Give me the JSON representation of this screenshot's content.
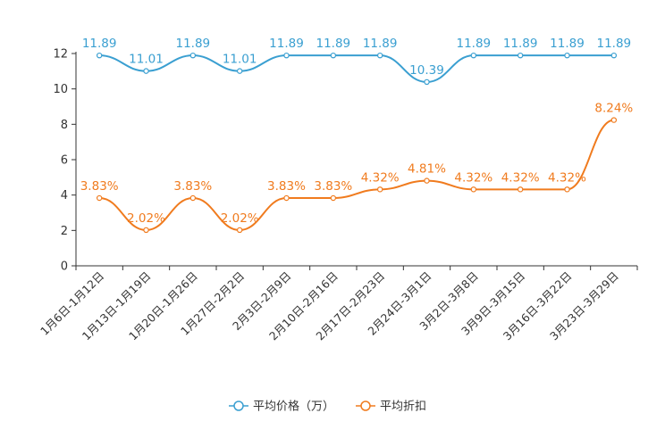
{
  "chart_data": {
    "type": "line",
    "categories": [
      "1月6日-1月12日",
      "1月13日-1月19日",
      "1月20日-1月26日",
      "1月27日-2月2日",
      "2月3日-2月9日",
      "2月10日-2月16日",
      "2月17日-2月23日",
      "2月24日-3月1日",
      "3月2日-3月8日",
      "3月9日-3月15日",
      "3月16日-3月22日",
      "3月23日-3月29日"
    ],
    "ylim": [
      0,
      12
    ],
    "yticks": [
      0,
      2,
      4,
      6,
      8,
      10,
      12
    ],
    "series": [
      {
        "name": "平均价格（万）",
        "color": "#3a9fd1",
        "values": [
          11.89,
          11.01,
          11.89,
          11.01,
          11.89,
          11.89,
          11.89,
          10.39,
          11.89,
          11.89,
          11.89,
          11.89
        ],
        "labels": [
          "11.89",
          "11.01",
          "11.89",
          "11.01",
          "11.89",
          "11.89",
          "11.89",
          "10.39",
          "11.89",
          "11.89",
          "11.89",
          "11.89"
        ]
      },
      {
        "name": "平均折扣",
        "color": "#f07b1e",
        "values": [
          3.83,
          2.02,
          3.83,
          2.02,
          3.83,
          3.83,
          4.32,
          4.81,
          4.32,
          4.32,
          4.32,
          8.24
        ],
        "labels": [
          "3.83%",
          "2.02%",
          "3.83%",
          "2.02%",
          "3.83%",
          "3.83%",
          "4.32%",
          "4.81%",
          "4.32%",
          "4.32%",
          "4.32%",
          "8.24%"
        ]
      }
    ],
    "legend_position": "bottom-center"
  }
}
